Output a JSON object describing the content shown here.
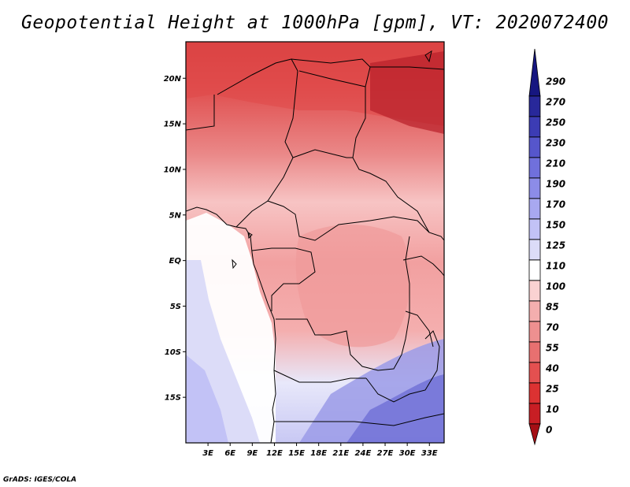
{
  "title": "Geopotential Height at 1000hPa [gpm], VT: 2020072400",
  "credit": "GrADS: IGES/COLA",
  "map": {
    "lon_range": [
      0,
      35
    ],
    "lat_range": [
      -20,
      24
    ],
    "lat_ticks": [
      {
        "value": 20,
        "label": "20N"
      },
      {
        "value": 15,
        "label": "15N"
      },
      {
        "value": 10,
        "label": "10N"
      },
      {
        "value": 5,
        "label": "5N"
      },
      {
        "value": 0,
        "label": "EQ"
      },
      {
        "value": -5,
        "label": "5S"
      },
      {
        "value": -10,
        "label": "10S"
      },
      {
        "value": -15,
        "label": "15S"
      }
    ],
    "lon_ticks": [
      {
        "value": 3,
        "label": "3E"
      },
      {
        "value": 6,
        "label": "6E"
      },
      {
        "value": 9,
        "label": "9E"
      },
      {
        "value": 12,
        "label": "12E"
      },
      {
        "value": 15,
        "label": "15E"
      },
      {
        "value": 18,
        "label": "18E"
      },
      {
        "value": 21,
        "label": "21E"
      },
      {
        "value": 24,
        "label": "24E"
      },
      {
        "value": 27,
        "label": "27E"
      },
      {
        "value": 30,
        "label": "30E"
      },
      {
        "value": 33,
        "label": "33E"
      }
    ]
  },
  "colorbar": {
    "levels": [
      "0",
      "10",
      "25",
      "40",
      "55",
      "70",
      "85",
      "100",
      "110",
      "125",
      "150",
      "170",
      "190",
      "210",
      "230",
      "250",
      "270",
      "290"
    ],
    "colors": [
      "#a50f15",
      "#c81e24",
      "#dc3232",
      "#e45050",
      "#e87070",
      "#ee9090",
      "#f4aeae",
      "#fad2d2",
      "#ffffff",
      "#dcdcf8",
      "#c2c2f6",
      "#a8a8f0",
      "#8c8ce8",
      "#7070dc",
      "#5656cc",
      "#3c3cb4",
      "#28289a",
      "#161680"
    ]
  }
}
